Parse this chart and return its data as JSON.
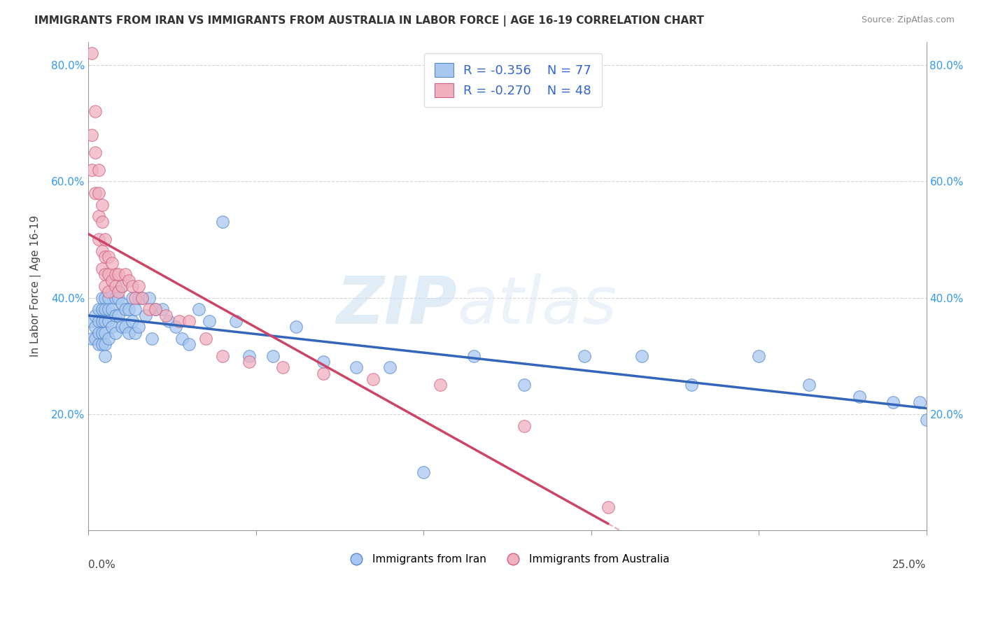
{
  "title": "IMMIGRANTS FROM IRAN VS IMMIGRANTS FROM AUSTRALIA IN LABOR FORCE | AGE 16-19 CORRELATION CHART",
  "source": "Source: ZipAtlas.com",
  "ylabel": "In Labor Force | Age 16-19",
  "xlabel_label_iran": "Immigrants from Iran",
  "xlabel_label_australia": "Immigrants from Australia",
  "xmin": 0.0,
  "xmax": 0.25,
  "ymin": 0.0,
  "ymax": 0.84,
  "yticks": [
    0.2,
    0.4,
    0.6,
    0.8
  ],
  "ytick_labels": [
    "20.0%",
    "40.0%",
    "60.0%",
    "80.0%"
  ],
  "xtick_left_label": "0.0%",
  "xtick_right_label": "25.0%",
  "legend_r_iran": "-0.356",
  "legend_n_iran": "77",
  "legend_r_australia": "-0.270",
  "legend_n_australia": "48",
  "color_iran_fill": "#a8c8f0",
  "color_iran_edge": "#5588cc",
  "color_australia_fill": "#f0b0c0",
  "color_australia_edge": "#d06080",
  "color_iran_line": "#3366bb",
  "color_australia_line": "#cc4466",
  "iran_x": [
    0.001,
    0.001,
    0.002,
    0.002,
    0.002,
    0.003,
    0.003,
    0.003,
    0.003,
    0.004,
    0.004,
    0.004,
    0.004,
    0.004,
    0.005,
    0.005,
    0.005,
    0.005,
    0.005,
    0.005,
    0.006,
    0.006,
    0.006,
    0.006,
    0.007,
    0.007,
    0.007,
    0.008,
    0.008,
    0.008,
    0.009,
    0.009,
    0.01,
    0.01,
    0.01,
    0.011,
    0.011,
    0.012,
    0.012,
    0.013,
    0.013,
    0.014,
    0.014,
    0.015,
    0.015,
    0.016,
    0.017,
    0.018,
    0.019,
    0.02,
    0.022,
    0.024,
    0.026,
    0.028,
    0.03,
    0.033,
    0.036,
    0.04,
    0.044,
    0.048,
    0.055,
    0.062,
    0.07,
    0.08,
    0.09,
    0.1,
    0.115,
    0.13,
    0.148,
    0.165,
    0.18,
    0.2,
    0.215,
    0.23,
    0.24,
    0.248,
    0.25
  ],
  "iran_y": [
    0.36,
    0.33,
    0.37,
    0.35,
    0.33,
    0.38,
    0.36,
    0.34,
    0.32,
    0.4,
    0.38,
    0.36,
    0.34,
    0.32,
    0.4,
    0.38,
    0.36,
    0.34,
    0.32,
    0.3,
    0.4,
    0.38,
    0.36,
    0.33,
    0.41,
    0.38,
    0.35,
    0.4,
    0.37,
    0.34,
    0.4,
    0.37,
    0.42,
    0.39,
    0.35,
    0.38,
    0.35,
    0.38,
    0.34,
    0.4,
    0.36,
    0.38,
    0.34,
    0.4,
    0.35,
    0.4,
    0.37,
    0.4,
    0.33,
    0.38,
    0.38,
    0.36,
    0.35,
    0.33,
    0.32,
    0.38,
    0.36,
    0.53,
    0.36,
    0.3,
    0.3,
    0.35,
    0.29,
    0.28,
    0.28,
    0.1,
    0.3,
    0.25,
    0.3,
    0.3,
    0.25,
    0.3,
    0.25,
    0.23,
    0.22,
    0.22,
    0.19
  ],
  "aus_x": [
    0.001,
    0.001,
    0.001,
    0.002,
    0.002,
    0.002,
    0.003,
    0.003,
    0.003,
    0.003,
    0.004,
    0.004,
    0.004,
    0.004,
    0.005,
    0.005,
    0.005,
    0.005,
    0.006,
    0.006,
    0.006,
    0.007,
    0.007,
    0.008,
    0.008,
    0.009,
    0.009,
    0.01,
    0.011,
    0.012,
    0.013,
    0.014,
    0.015,
    0.016,
    0.018,
    0.02,
    0.023,
    0.027,
    0.03,
    0.035,
    0.04,
    0.048,
    0.058,
    0.07,
    0.085,
    0.105,
    0.13,
    0.155
  ],
  "aus_y": [
    0.82,
    0.68,
    0.62,
    0.72,
    0.65,
    0.58,
    0.62,
    0.58,
    0.54,
    0.5,
    0.56,
    0.53,
    0.48,
    0.45,
    0.5,
    0.47,
    0.44,
    0.42,
    0.47,
    0.44,
    0.41,
    0.46,
    0.43,
    0.44,
    0.42,
    0.44,
    0.41,
    0.42,
    0.44,
    0.43,
    0.42,
    0.4,
    0.42,
    0.4,
    0.38,
    0.38,
    0.37,
    0.36,
    0.36,
    0.33,
    0.3,
    0.29,
    0.28,
    0.27,
    0.26,
    0.25,
    0.18,
    0.04
  ],
  "watermark_zip": "ZIP",
  "watermark_atlas": "atlas",
  "background_color": "#ffffff",
  "grid_color": "#cccccc",
  "spine_color": "#999999"
}
